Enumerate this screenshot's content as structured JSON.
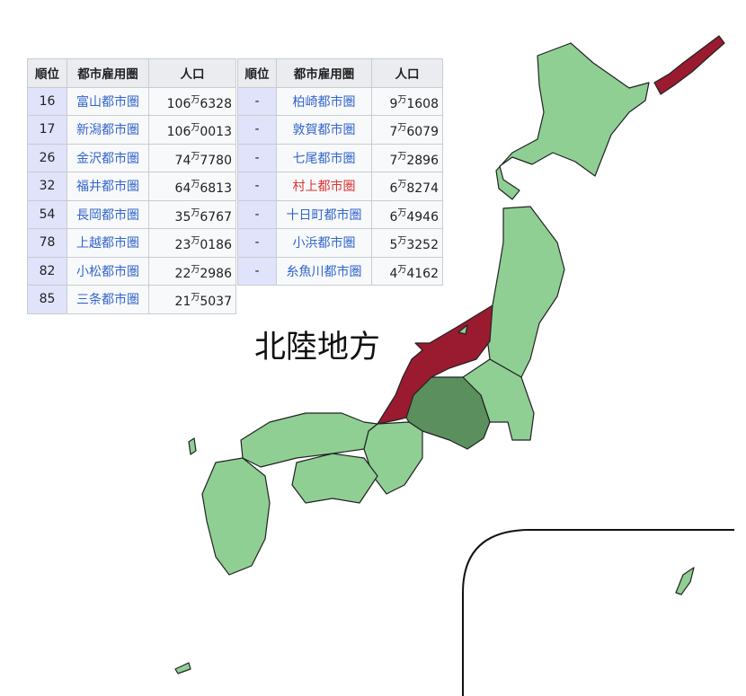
{
  "colors": {
    "region_highlight": "#9a1b30",
    "neighbor_dark": "#5b8f5e",
    "land": "#8fcf94",
    "link": "#3366cc",
    "redlink": "#dd3333"
  },
  "map_label": "北陸地方",
  "unit": "万",
  "table_left": {
    "headers": [
      "順位",
      "都市雇用圏",
      "人口"
    ],
    "rows": [
      {
        "rank": "16",
        "name": "富山都市圏",
        "pop_hi": "106",
        "pop_lo": "6328"
      },
      {
        "rank": "17",
        "name": "新潟都市圏",
        "pop_hi": "106",
        "pop_lo": "0013"
      },
      {
        "rank": "26",
        "name": "金沢都市圏",
        "pop_hi": "74",
        "pop_lo": "7780"
      },
      {
        "rank": "32",
        "name": "福井都市圏",
        "pop_hi": "64",
        "pop_lo": "6813"
      },
      {
        "rank": "54",
        "name": "長岡都市圏",
        "pop_hi": "35",
        "pop_lo": "6767"
      },
      {
        "rank": "78",
        "name": "上越都市圏",
        "pop_hi": "23",
        "pop_lo": "0186"
      },
      {
        "rank": "82",
        "name": "小松都市圏",
        "pop_hi": "22",
        "pop_lo": "2986"
      },
      {
        "rank": "85",
        "name": "三条都市圏",
        "pop_hi": "21",
        "pop_lo": "5037"
      }
    ]
  },
  "table_right": {
    "headers": [
      "順位",
      "都市雇用圏",
      "人口"
    ],
    "rows": [
      {
        "rank": "-",
        "name": "柏崎都市圏",
        "pop_hi": "9",
        "pop_lo": "1608"
      },
      {
        "rank": "-",
        "name": "敦賀都市圏",
        "pop_hi": "7",
        "pop_lo": "6079"
      },
      {
        "rank": "-",
        "name": "七尾都市圏",
        "pop_hi": "7",
        "pop_lo": "2896"
      },
      {
        "rank": "-",
        "name": "村上都市圏",
        "pop_hi": "6",
        "pop_lo": "8274",
        "redlink": true
      },
      {
        "rank": "-",
        "name": "十日町都市圏",
        "pop_hi": "6",
        "pop_lo": "4946"
      },
      {
        "rank": "-",
        "name": "小浜都市圏",
        "pop_hi": "5",
        "pop_lo": "3252"
      },
      {
        "rank": "-",
        "name": "糸魚川都市圏",
        "pop_hi": "4",
        "pop_lo": "4162"
      }
    ]
  }
}
